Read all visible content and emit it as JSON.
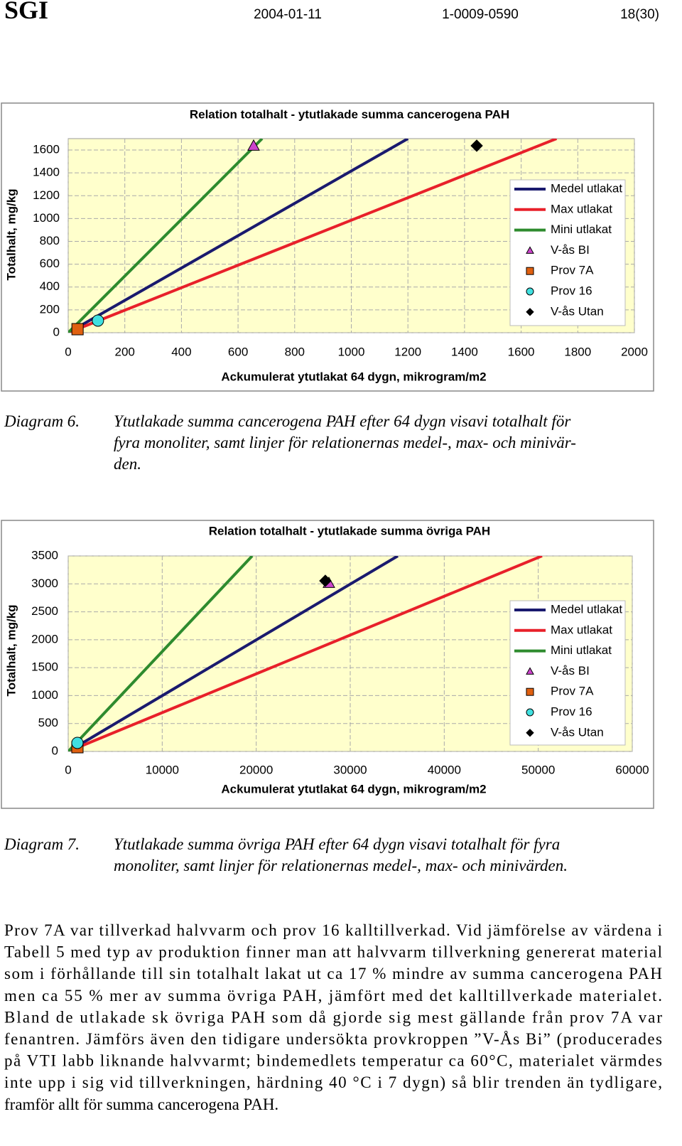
{
  "header": {
    "logo": "SGI",
    "date": "2004-01-11",
    "number": "1-0009-0590",
    "page": "18(30)"
  },
  "chart_data": [
    {
      "type": "line",
      "title": "Relation totalhalt - ytutlakade summa cancerogena PAH",
      "x_label": "Ackumulerat ytutlakat 64 dygn, mikrogram/m2",
      "y_label": "Totalhalt, mg/kg",
      "xlim": [
        0,
        2000
      ],
      "xticks": [
        0,
        200,
        400,
        600,
        800,
        1000,
        1200,
        1400,
        1600,
        1800,
        2000
      ],
      "ylim": [
        0,
        1700
      ],
      "yticks": [
        0,
        200,
        400,
        600,
        800,
        1000,
        1200,
        1400,
        1600
      ],
      "grid": true,
      "legend": "right",
      "series": [
        {
          "name": "Medel utlakat",
          "color": "#1a1a6e",
          "x": [
            0,
            1200
          ],
          "values": [
            0,
            1700
          ]
        },
        {
          "name": "Max utlakat",
          "color": "#e8202a",
          "x": [
            0,
            1725
          ],
          "values": [
            0,
            1700
          ]
        },
        {
          "name": "Mini utlakat",
          "color": "#2e8b2e",
          "x": [
            0,
            685
          ],
          "values": [
            0,
            1700
          ]
        },
        {
          "name": "V-ås BI",
          "color": "#cc44cc",
          "marker": "triangle",
          "x": [
            655
          ],
          "values": [
            1638
          ]
        },
        {
          "name": "Prov 7A",
          "color": "#e06010",
          "marker": "square",
          "x": [
            33
          ],
          "values": [
            31
          ]
        },
        {
          "name": "Prov 16",
          "color": "#40e0e0",
          "marker": "circle",
          "x": [
            105
          ],
          "values": [
            106
          ]
        },
        {
          "name": "V-ås Utan",
          "color": "#000000",
          "marker": "diamond",
          "x": [
            1443
          ],
          "values": [
            1638
          ]
        }
      ]
    },
    {
      "type": "line",
      "title": "Relation totalhalt - ytutlakade summa övriga PAH",
      "x_label": "Ackumulerat ytutlakat 64 dygn, mikrogram/m2",
      "y_label": "Totalhalt, mg/kg",
      "xlim": [
        0,
        60000
      ],
      "xticks": [
        0,
        10000,
        20000,
        30000,
        40000,
        50000,
        60000
      ],
      "ylim": [
        0,
        3500
      ],
      "yticks": [
        0,
        500,
        1000,
        1500,
        2000,
        2500,
        3000,
        3500
      ],
      "grid": true,
      "legend": "right",
      "series": [
        {
          "name": "Medel utlakat",
          "color": "#1a1a6e",
          "x": [
            0,
            35060
          ],
          "values": [
            0,
            3500
          ]
        },
        {
          "name": "Max utlakat",
          "color": "#e8202a",
          "x": [
            0,
            50400
          ],
          "values": [
            0,
            3500
          ]
        },
        {
          "name": "Mini utlakat",
          "color": "#2e8b2e",
          "x": [
            0,
            19570
          ],
          "values": [
            0,
            3500
          ]
        },
        {
          "name": "V-ås BI",
          "color": "#cc44cc",
          "marker": "triangle",
          "x": [
            27730
          ],
          "values": [
            3016
          ]
        },
        {
          "name": "Prov 7A",
          "color": "#e06010",
          "marker": "square",
          "x": [
            980
          ],
          "values": [
            76
          ]
        },
        {
          "name": "Prov 16",
          "color": "#40e0e0",
          "marker": "circle",
          "x": [
            980
          ],
          "values": [
            153
          ]
        },
        {
          "name": "V-ås Utan",
          "color": "#000000",
          "marker": "diamond",
          "x": [
            27350
          ],
          "values": [
            3055
          ]
        }
      ]
    }
  ],
  "captions": [
    {
      "label": "Diagram 6.",
      "lines": [
        "Ytutlakade summa cancerogena PAH efter 64 dygn visavi totalhalt för",
        "fyra monoliter, samt linjer för relationernas medel-, max- och minivär-",
        "den."
      ]
    },
    {
      "label": "Diagram 7.",
      "lines": [
        "Ytutlakade summa övriga PAH efter 64 dygn visavi totalhalt för fyra",
        "monoliter, samt linjer för relationernas medel-, max- och minivärden."
      ]
    }
  ],
  "paragraph": {
    "lines": [
      "Prov 7A var tillverkad halvvarm och prov 16 kalltillverkad. Vid jämförelse av värdena i",
      "Tabell 5 med typ av produktion finner man att halvvarm tillverkning genererat material",
      "som i förhållande till sin totalhalt lakat ut ca 17 % mindre av summa cancerogena PAH",
      "men ca 55 % mer av summa övriga PAH, jämfört med det kalltillverkade materialet.",
      "Bland de utlakade sk övriga PAH som då gjorde sig mest gällande från prov 7A var",
      "fenantren. Jämförs även den tidigare undersökta provkroppen ”V-Ås Bi” (producerades",
      "på VTI labb liknande halvvarmt; bindemedlets temperatur ca 60°C, materialet värmdes",
      "inte upp i sig vid tillverkningen, härdning 40 °C i 7 dygn) så blir trenden än tydligare,",
      "framför allt för summa cancerogena PAH."
    ]
  }
}
